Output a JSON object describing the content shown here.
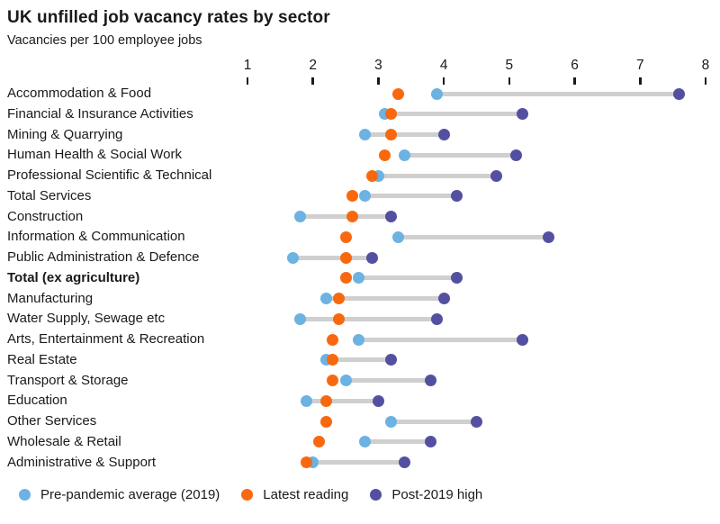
{
  "header": {
    "title": "UK unfilled job vacancy rates by sector",
    "subtitle": "Vacancies per 100 employee jobs"
  },
  "colors": {
    "pre_pandemic": "#6CB2E2",
    "latest": "#F8690F",
    "post_high": "#5450A1",
    "connector": "#CFCFCF",
    "axis": "#1A1A1A"
  },
  "chart_data": {
    "type": "scatter",
    "subtype": "dumbbell-dot-plot",
    "title": "UK unfilled job vacancy rates by sector",
    "xlabel": "Vacancies per 100 employee jobs",
    "ylabel": "",
    "xlim": [
      1,
      8
    ],
    "x_ticks": [
      1,
      2,
      3,
      4,
      5,
      6,
      7,
      8
    ],
    "grid": false,
    "legend_position": "bottom",
    "axis_position": "top",
    "connector_spans": "pre_pandemic_to_post_high",
    "categories": [
      "Accommodation & Food",
      "Financial & Insurance Activities",
      "Mining & Quarrying",
      "Human Health & Social Work",
      "Professional Scientific & Technical",
      "Total Services",
      "Construction",
      "Information & Communication",
      "Public Administration & Defence",
      "Total (ex agriculture)",
      "Manufacturing",
      "Water Supply, Sewage etc",
      "Arts, Entertainment & Recreation",
      "Real Estate",
      "Transport & Storage",
      "Education",
      "Other Services",
      "Wholesale & Retail",
      "Administrative & Support"
    ],
    "bold_category": "Total (ex agriculture)",
    "series": [
      {
        "name": "Pre-pandemic average (2019)",
        "color_key": "pre_pandemic",
        "values": [
          3.9,
          3.1,
          2.8,
          3.4,
          3.0,
          2.8,
          1.8,
          3.3,
          1.7,
          2.7,
          2.2,
          1.8,
          2.7,
          2.2,
          2.5,
          1.9,
          3.2,
          2.8,
          2.0
        ]
      },
      {
        "name": "Latest reading",
        "color_key": "latest",
        "values": [
          3.3,
          3.2,
          3.2,
          3.1,
          2.9,
          2.6,
          2.6,
          2.5,
          2.5,
          2.5,
          2.4,
          2.4,
          2.3,
          2.3,
          2.3,
          2.2,
          2.2,
          2.1,
          1.9
        ]
      },
      {
        "name": "Post-2019 high",
        "color_key": "post_high",
        "values": [
          7.6,
          5.2,
          4.0,
          5.1,
          4.8,
          4.2,
          3.2,
          5.6,
          2.9,
          4.2,
          4.0,
          3.9,
          5.2,
          3.2,
          3.8,
          3.0,
          4.5,
          3.8,
          3.4
        ]
      }
    ]
  },
  "legend": [
    {
      "label": "Pre-pandemic average (2019)",
      "color_key": "pre_pandemic"
    },
    {
      "label": "Latest reading",
      "color_key": "latest"
    },
    {
      "label": "Post-2019 high",
      "color_key": "post_high"
    }
  ]
}
